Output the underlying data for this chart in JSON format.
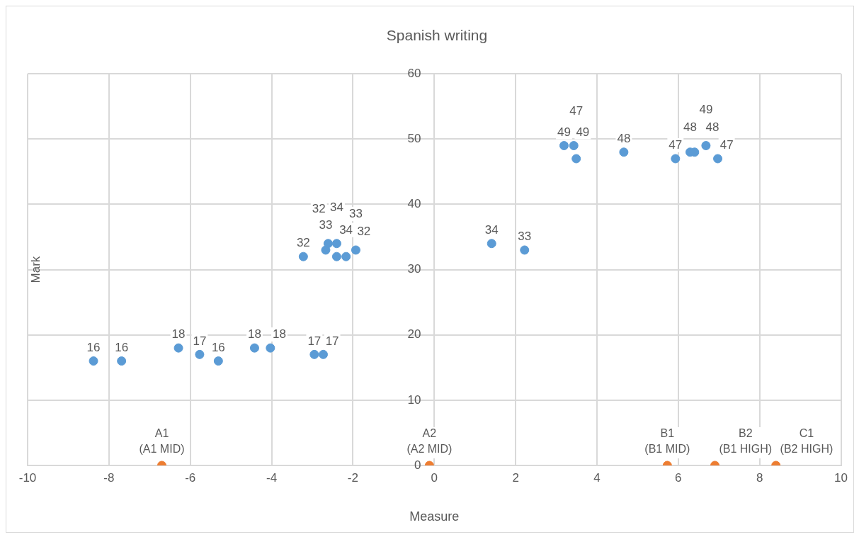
{
  "chart_data": {
    "type": "scatter",
    "title": "Spanish writing",
    "xlabel": "Measure",
    "ylabel": "Mark",
    "xlim": [
      -10,
      10
    ],
    "xticks": [
      -10,
      -8,
      -6,
      -4,
      -2,
      0,
      2,
      4,
      6,
      8,
      10
    ],
    "ylim": [
      0,
      60
    ],
    "yticks": [
      0,
      10,
      20,
      30,
      40,
      50,
      60
    ],
    "grid": true,
    "legend": false,
    "marker": "circle",
    "series": [
      {
        "color": "#5b9bd5",
        "x": [
          -8.38,
          -7.69,
          -6.29,
          -5.77,
          -5.31,
          -4.42,
          -4.03,
          -2.95,
          -2.73,
          -3.22,
          -2.67,
          -2.61,
          -2.4,
          -2.4,
          -2.17,
          -1.93,
          1.41,
          2.22,
          3.19,
          3.43,
          3.49,
          4.66,
          5.93,
          6.29,
          6.4,
          6.68,
          6.97
        ],
        "values": [
          16,
          16,
          18,
          17,
          16,
          18,
          18,
          17,
          17,
          32,
          33,
          34,
          34,
          32,
          32,
          33,
          34,
          33,
          49,
          49,
          47,
          48,
          47,
          48,
          48,
          49,
          47
        ],
        "value_labels": [
          "16",
          "16",
          "18",
          "17",
          "16",
          "18",
          "18",
          "17",
          "17",
          "32",
          "33",
          "34",
          "34",
          "32",
          "32",
          "33",
          "34",
          "33",
          "49",
          "49",
          "47",
          "48",
          "47",
          "48",
          "48",
          "49",
          "47"
        ]
      },
      {
        "color": "#ed7d31",
        "x": [
          -6.7,
          -0.12,
          5.73,
          6.9,
          8.4
        ],
        "values": [
          0,
          0,
          0,
          0,
          0
        ]
      }
    ],
    "annotations": [
      {
        "text": "A1\n(A1 MID)",
        "x": -6.7,
        "y": 0
      },
      {
        "text": "A2\n(A2 MID)",
        "x": -0.12,
        "y": 0
      },
      {
        "text": "B1\n(B1 MID)",
        "x": 5.73,
        "y": 0
      },
      {
        "text": "B2\n(B1 HIGH)",
        "x": 6.9,
        "y": 0
      },
      {
        "text": "C1\n(B2 HIGH)",
        "x": 8.4,
        "y": 0
      }
    ]
  }
}
